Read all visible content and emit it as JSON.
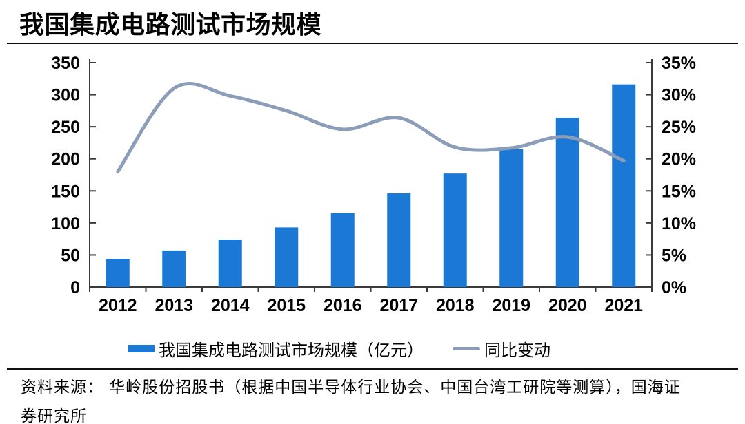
{
  "report": {
    "title": "我国集成电路测试市场规模",
    "source": {
      "line1": "资料来源： 华岭股份招股书（根据中国半导体行业协会、中国台湾工研院等测算），国海证",
      "line2": "券研究所"
    }
  },
  "legend": {
    "bar_label": "我国集成电路测试市场规模（亿元）",
    "line_label": "同比变动"
  },
  "colors": {
    "bar": "#1B78D5",
    "line": "#8C9DB9",
    "axis": "#3A3A3A",
    "text": "#000000",
    "rule": "#111111"
  },
  "chart_data": {
    "type": "bar+line",
    "title": "我国集成电路测试市场规模",
    "categories": [
      "2012",
      "2013",
      "2014",
      "2015",
      "2016",
      "2017",
      "2018",
      "2019",
      "2020",
      "2021"
    ],
    "series": [
      {
        "name": "我国集成电路测试市场规模（亿元）",
        "type": "bar",
        "axis": "left",
        "unit": "亿元",
        "values": [
          44,
          57,
          74,
          93,
          115,
          146,
          177,
          215,
          264,
          316
        ]
      },
      {
        "name": "同比变动",
        "type": "line",
        "axis": "right",
        "unit": "%",
        "values": [
          18.0,
          31.0,
          29.8,
          27.5,
          24.6,
          26.4,
          21.8,
          21.7,
          23.4,
          19.7
        ]
      }
    ],
    "left_axis": {
      "min": 0,
      "max": 350,
      "step": 50
    },
    "right_axis": {
      "min": 0,
      "max": 35,
      "step": 5,
      "format": "percent"
    },
    "grid": false,
    "legend_position": "bottom",
    "smooth_line": true
  }
}
